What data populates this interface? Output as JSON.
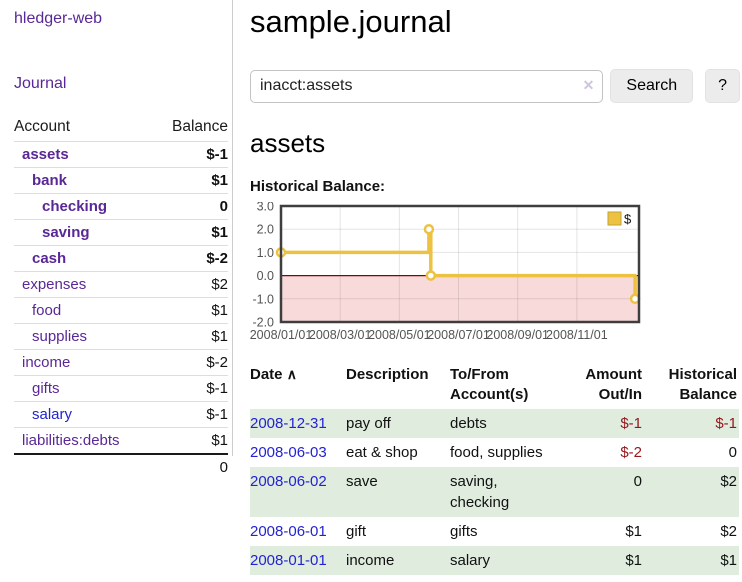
{
  "brand": "hledger-web",
  "nav": {
    "journal_label": "Journal"
  },
  "sidebar_accounts": {
    "headers": {
      "account": "Account",
      "balance": "Balance"
    },
    "rows": [
      {
        "name": "assets",
        "indent": 1,
        "bold": true,
        "balance": "$-1",
        "neg": "strong",
        "link": "purple"
      },
      {
        "name": "bank",
        "indent": 2,
        "bold": true,
        "balance": "$1",
        "neg": "none",
        "link": "purple"
      },
      {
        "name": "checking",
        "indent": 3,
        "bold": true,
        "balance": "0",
        "neg": "none",
        "link": "purple"
      },
      {
        "name": "saving",
        "indent": 3,
        "bold": true,
        "balance": "$1",
        "neg": "none",
        "link": "purple"
      },
      {
        "name": "cash",
        "indent": 2,
        "bold": true,
        "balance": "$-2",
        "neg": "strong",
        "link": "purple"
      },
      {
        "name": "expenses",
        "indent": 1,
        "bold": false,
        "balance": "$2",
        "neg": "none",
        "link": "purple"
      },
      {
        "name": "food",
        "indent": 2,
        "bold": false,
        "balance": "$1",
        "neg": "none",
        "link": "purple"
      },
      {
        "name": "supplies",
        "indent": 2,
        "bold": false,
        "balance": "$1",
        "neg": "none",
        "link": "purple"
      },
      {
        "name": "income",
        "indent": 1,
        "bold": false,
        "balance": "$-2",
        "neg": "soft",
        "link": "purple"
      },
      {
        "name": "gifts",
        "indent": 2,
        "bold": false,
        "balance": "$-1",
        "neg": "soft",
        "link": "purple"
      },
      {
        "name": "salary",
        "indent": 2,
        "bold": false,
        "balance": "$-1",
        "neg": "soft",
        "link": "blue"
      },
      {
        "name": "liabilities:debts",
        "indent": 1,
        "bold": false,
        "balance": "$1",
        "neg": "none",
        "link": "purple"
      }
    ],
    "total": "0"
  },
  "header": {
    "title": "sample.journal"
  },
  "search": {
    "value": "inacct:assets",
    "placeholder": "",
    "clear_icon": "✕",
    "search_button": "Search",
    "help_button": "?"
  },
  "account_page": {
    "title": "assets",
    "chart_label": "Historical Balance:"
  },
  "chart_data": {
    "type": "line",
    "title": "Historical Balance",
    "series": [
      {
        "name": "$",
        "color": "#edc240",
        "step": true,
        "points": [
          [
            "2008-01-01",
            1
          ],
          [
            "2008-06-01",
            2
          ],
          [
            "2008-06-03",
            0
          ],
          [
            "2008-12-31",
            -1
          ]
        ]
      }
    ],
    "ylim": [
      -2,
      3
    ],
    "yticks": [
      "3.0",
      "2.0",
      "1.0",
      "0.0",
      "-1.0",
      "-2.0"
    ],
    "xticks": [
      "2008/01/01",
      "2008/03/01",
      "2008/05/01",
      "2008/07/01",
      "2008/09/01",
      "2008/11/01"
    ],
    "xtick_months": [
      0,
      2,
      4,
      6,
      8,
      10
    ],
    "xlim_months": [
      0,
      12.1
    ],
    "legend": {
      "label": "$",
      "position": "top-right"
    },
    "grid": true,
    "negative_fill": "#f8dada",
    "zero_line_color": "#8b0000"
  },
  "register": {
    "headers": {
      "date": "Date",
      "sort_icon": "∧",
      "description": "Description",
      "accounts": "To/From Account(s)",
      "amount": "Amount Out/In",
      "balance": "Historical Balance"
    },
    "rows": [
      {
        "date": "2008-12-31",
        "description": "pay off",
        "accounts": "debts",
        "amount": "$-1",
        "amount_neg": true,
        "balance": "$-1",
        "balance_neg": true,
        "shaded": true
      },
      {
        "date": "2008-06-03",
        "description": "eat & shop",
        "accounts": "food, supplies",
        "amount": "$-2",
        "amount_neg": true,
        "balance": "0",
        "balance_neg": false,
        "shaded": false
      },
      {
        "date": "2008-06-02",
        "description": "save",
        "accounts": "saving, checking",
        "amount": "0",
        "amount_neg": false,
        "balance": "$2",
        "balance_neg": false,
        "shaded": true
      },
      {
        "date": "2008-06-01",
        "description": "gift",
        "accounts": "gifts",
        "amount": "$1",
        "amount_neg": false,
        "balance": "$2",
        "balance_neg": false,
        "shaded": false
      },
      {
        "date": "2008-01-01",
        "description": "income",
        "accounts": "salary",
        "amount": "$1",
        "amount_neg": false,
        "balance": "$1",
        "balance_neg": false,
        "shaded": true
      }
    ]
  }
}
